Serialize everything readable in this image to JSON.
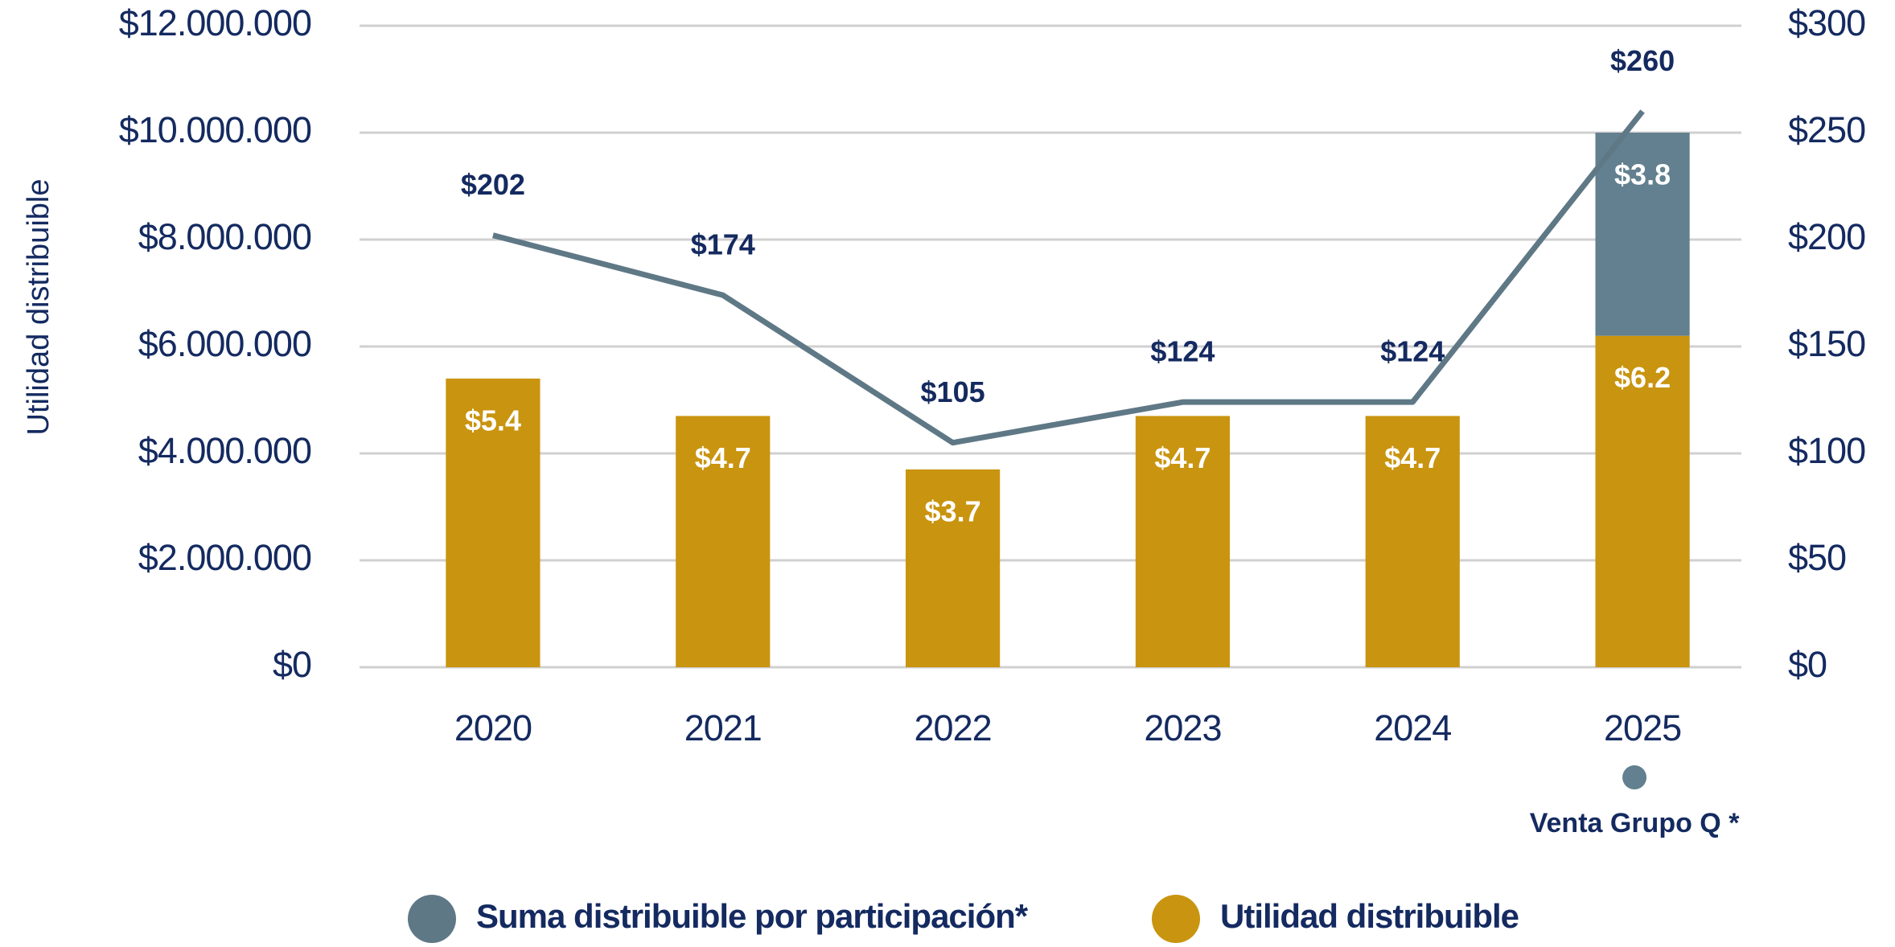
{
  "chart_data": {
    "type": "bar",
    "stacked": true,
    "y_axis_label": "Utilidad distribuible",
    "categories": [
      "2020",
      "2021",
      "2022",
      "2023",
      "2024",
      "2025"
    ],
    "series": [
      {
        "name": "Suma distribuible por participación*",
        "type": "line",
        "axis": "y2",
        "color": "#5f7886",
        "values": [
          202,
          174,
          105,
          124,
          124,
          260
        ],
        "value_labels": [
          "$202",
          "$174",
          "$105",
          "$124",
          "$124",
          "$260"
        ]
      },
      {
        "name": "Utilidad distribuible",
        "color": "#c9940f",
        "values": [
          5400000,
          4700000,
          3700000,
          4700000,
          4700000,
          6200000
        ],
        "value_labels": [
          "$5.4",
          "$4.7",
          "$3.7",
          "$4.7",
          "$4.7",
          "$6.2"
        ]
      },
      {
        "name": "Venta Grupo Q *",
        "color": "#62808f",
        "name_position": "below-category",
        "values": [
          null,
          null,
          null,
          null,
          null,
          3800000
        ],
        "value_labels": [
          null,
          null,
          null,
          null,
          null,
          "$3.8"
        ]
      }
    ],
    "ylim": [
      0,
      12000000
    ],
    "yticks": [
      {
        "value": 0,
        "label": "$0"
      },
      {
        "value": 2000000,
        "label": "$2.000.000"
      },
      {
        "value": 4000000,
        "label": "$4.000.000"
      },
      {
        "value": 6000000,
        "label": "$6.000.000"
      },
      {
        "value": 8000000,
        "label": "$8.000.000"
      },
      {
        "value": 10000000,
        "label": "$10.000.000"
      },
      {
        "value": 12000000,
        "label": "$12.000.000"
      }
    ],
    "y2lim": [
      0,
      300
    ],
    "y2ticks": [
      {
        "value": 0,
        "label": "$0"
      },
      {
        "value": 50,
        "label": "$50"
      },
      {
        "value": 100,
        "label": "$100"
      },
      {
        "value": 150,
        "label": "$150"
      },
      {
        "value": 200,
        "label": "$200"
      },
      {
        "value": 250,
        "label": "$250"
      },
      {
        "value": 300,
        "label": "$300"
      }
    ],
    "grid": true,
    "legend": "bottom"
  }
}
